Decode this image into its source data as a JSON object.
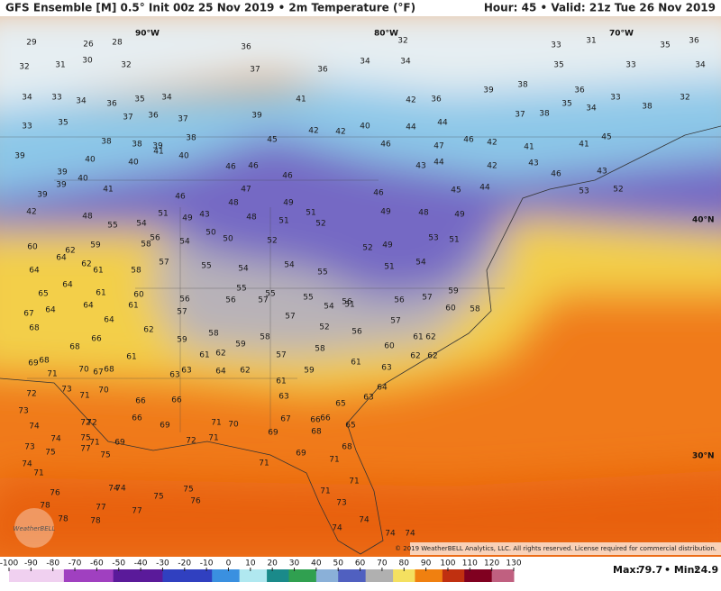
{
  "header": {
    "title": "GFS Ensemble [M] 0.5° Init 00z 25 Nov 2019 • 2m Temperature (°F)",
    "valid": "Hour: 45 • Valid: 21z Tue 26 Nov 2019"
  },
  "grid_labels": [
    "90°W",
    "80°W",
    "70°W",
    "40°N",
    "30°N"
  ],
  "stations": [
    29,
    26,
    28,
    36,
    32,
    33,
    31,
    35,
    36,
    32,
    31,
    30,
    32,
    37,
    36,
    34,
    34,
    35,
    33,
    34,
    34,
    33,
    34,
    36,
    35,
    34,
    39,
    41,
    42,
    36,
    39,
    38,
    36,
    33,
    32,
    33,
    35,
    37,
    36,
    37,
    40,
    44,
    44,
    37,
    38,
    35,
    34,
    38,
    38,
    38,
    39,
    38,
    45,
    42,
    42,
    46,
    47,
    46,
    42,
    41,
    41,
    45,
    39,
    40,
    40,
    41,
    40,
    46,
    46,
    46,
    43,
    44,
    42,
    43,
    46,
    43,
    39,
    40,
    39,
    41,
    46,
    47,
    45,
    44,
    53,
    52,
    39,
    48,
    49,
    51,
    46,
    49,
    48,
    49,
    42,
    48,
    55,
    54,
    51,
    49,
    43,
    48,
    51,
    52,
    60,
    62,
    59,
    58,
    56,
    54,
    50,
    50,
    52,
    52,
    49,
    53,
    51,
    64,
    64,
    62,
    61,
    58,
    57,
    55,
    54,
    54,
    55,
    51,
    54,
    65,
    64,
    61,
    60,
    56,
    55,
    55,
    55,
    56,
    56,
    57,
    59,
    67,
    64,
    64,
    61,
    57,
    56,
    57,
    54,
    51,
    60,
    58,
    68,
    64,
    62,
    58,
    57,
    57,
    56,
    52,
    68,
    66,
    59,
    59,
    58,
    61,
    62,
    60,
    69,
    68,
    67,
    61,
    61,
    62,
    57,
    58,
    61,
    71,
    70,
    68,
    63,
    63,
    64,
    62,
    59,
    63,
    62,
    62,
    72,
    73,
    71,
    70,
    61,
    63,
    64,
    73,
    66,
    66,
    65,
    63,
    74,
    72,
    72,
    66,
    69,
    71,
    70,
    67,
    66,
    66,
    74,
    75,
    73,
    77,
    71,
    69,
    71,
    69,
    68,
    65,
    74,
    71,
    75,
    75,
    72,
    71,
    69,
    68,
    71,
    76,
    74,
    74,
    75,
    75,
    76,
    71,
    71,
    78,
    78,
    77,
    77,
    78,
    73,
    74,
    74,
    74,
    74
  ],
  "colorbar": {
    "ticks": [
      -100,
      -90,
      -80,
      -70,
      -60,
      -50,
      -40,
      -30,
      -20,
      -10,
      0,
      10,
      20,
      30,
      40,
      50,
      60,
      70,
      80,
      90,
      100,
      110,
      120,
      130
    ]
  },
  "footer": {
    "max_label": "Max:",
    "max": 79.7,
    "min_label": "• Min:",
    "min": 24.9,
    "copyright": "© 2019 WeatherBELL Analytics, LLC. All rights reserved. License required for commercial distribution.",
    "logo": "WeatherBELL"
  }
}
